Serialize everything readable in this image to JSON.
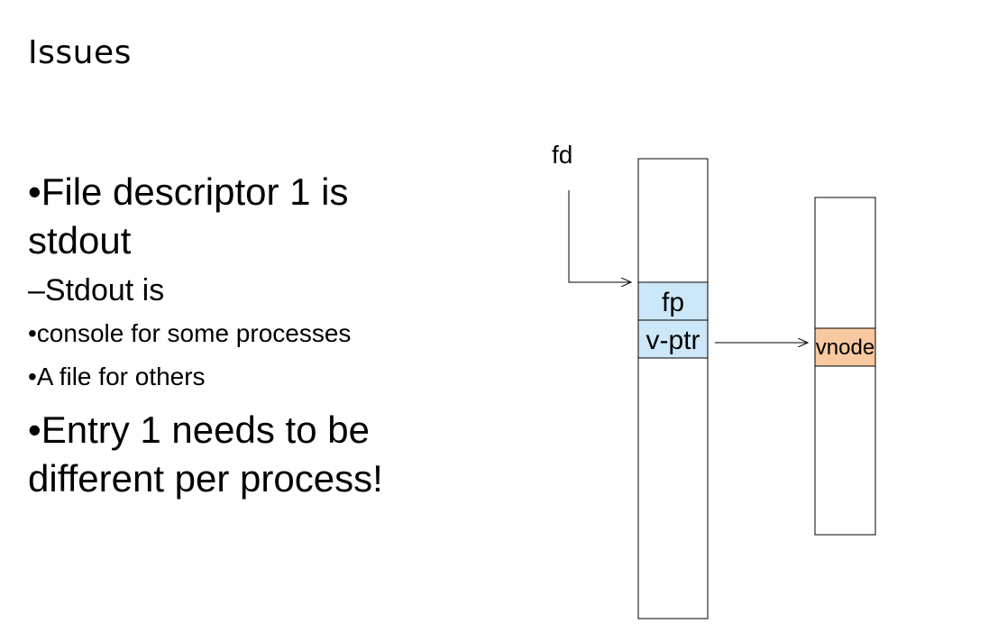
{
  "slide": {
    "title": "Issues"
  },
  "bullets": [
    {
      "text": "•File descriptor 1 is stdout"
    },
    {
      "text": "–Stdout is"
    },
    {
      "text": "•console for some processes"
    },
    {
      "text": "•A file for others"
    },
    {
      "text": "•Entry 1 needs to be different per process!"
    }
  ],
  "diagram": {
    "fd_label": "fd",
    "fp_label": "fp",
    "vptr_label": "v-ptr",
    "vnode_label": "vnode",
    "colors": {
      "fp_cell": "#cce8f8",
      "vnode_cell": "#f8c9a0",
      "stroke": "#000000"
    }
  }
}
